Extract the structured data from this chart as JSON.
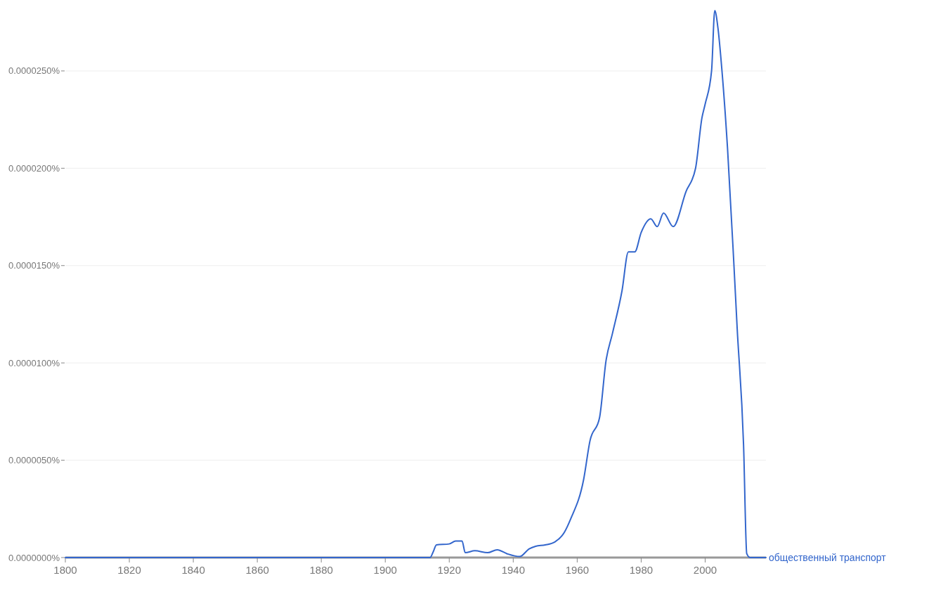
{
  "chart_data": {
    "type": "line",
    "x": [
      1800,
      1914,
      1915,
      1916,
      1920,
      1922,
      1924,
      1925,
      1928,
      1932,
      1935,
      1938,
      1942,
      1945,
      1947,
      1950,
      1953,
      1956,
      1958,
      1962,
      1964,
      1967,
      1969,
      1971,
      1974,
      1976,
      1978,
      1980,
      1983,
      1985,
      1987,
      1990,
      1994,
      1997,
      1999,
      2000,
      2002,
      2003,
      2004,
      2005,
      2007,
      2009,
      2010,
      2012,
      2013,
      2014,
      2019
    ],
    "series": [
      {
        "name": "общественный транспорт",
        "color": "#3366cc",
        "values": [
          0,
          0,
          3e-07,
          6.5e-07,
          7e-07,
          8.5e-07,
          8.5e-07,
          2.5e-07,
          3.5e-07,
          2.5e-07,
          4e-07,
          2e-07,
          5e-08,
          4.5e-07,
          5.8e-07,
          6.5e-07,
          8e-07,
          1.3e-06,
          2e-06,
          4e-06,
          6e-06,
          7.2e-06,
          1.01e-05,
          1.15e-05,
          1.37e-05,
          1.57e-05,
          1.57e-05,
          1.67e-05,
          1.74e-05,
          1.7e-05,
          1.77e-05,
          1.7e-05,
          1.88e-05,
          2e-05,
          2.26e-05,
          2.33e-05,
          2.5e-05,
          2.81e-05,
          2.72e-05,
          2.55e-05,
          2.1e-05,
          1.5e-05,
          1.18e-05,
          5.8e-06,
          2e-07,
          0,
          0
        ]
      }
    ],
    "xlim": [
      1800,
      2019
    ],
    "xticks": [
      1800,
      1820,
      1840,
      1860,
      1880,
      1900,
      1920,
      1940,
      1960,
      1980,
      2000
    ],
    "ylim": [
      0,
      2.85e-05
    ],
    "yticks": [
      {
        "value": 0,
        "label": "0.0000000%"
      },
      {
        "value": 5e-06,
        "label": "0.0000050%"
      },
      {
        "value": 1e-05,
        "label": "0.0000100%"
      },
      {
        "value": 1.5e-05,
        "label": "0.0000150%"
      },
      {
        "value": 2e-05,
        "label": "0.0000200%"
      },
      {
        "value": 2.5e-05,
        "label": "0.0000250%"
      }
    ],
    "grid": "y",
    "legend": false,
    "marker": "none",
    "line_style": "solid"
  }
}
